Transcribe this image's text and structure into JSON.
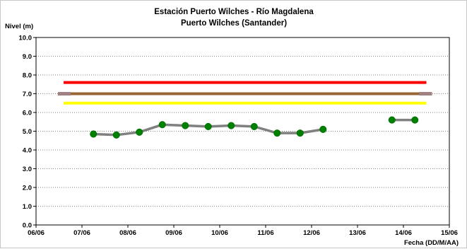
{
  "chart_data": {
    "type": "line",
    "title": "Estación Puerto Wilches - Río Magdalena",
    "subtitle": "Puerto Wilches (Santander)",
    "ylabel": "Nivel (m)",
    "xlabel": "Fecha (DD/M/AA)",
    "ylim": [
      0,
      10
    ],
    "yticks": [
      "0.0",
      "1.0",
      "2.0",
      "3.0",
      "4.0",
      "5.0",
      "6.0",
      "7.0",
      "8.0",
      "9.0",
      "10.0"
    ],
    "xlim": [
      0,
      9
    ],
    "xticks": [
      "06/06",
      "07/06",
      "08/06",
      "09/06",
      "10/06",
      "11/06",
      "12/06",
      "13/06",
      "14/06",
      "15/06"
    ],
    "grid": true,
    "thresholds": [
      {
        "value": 7.6,
        "color": "#ff0000",
        "x": [
          0.6,
          8.5
        ]
      },
      {
        "value": 7.0,
        "color": "#996633",
        "x": [
          0.6,
          8.5
        ]
      },
      {
        "value": 6.5,
        "color": "#ffff00",
        "x": [
          0.6,
          8.5
        ]
      }
    ],
    "series": [
      {
        "line_color": "#808080",
        "marker_color": "#008000",
        "segments": [
          {
            "x": [
              1.25,
              1.75,
              2.25,
              2.75,
              3.25,
              3.75,
              4.25,
              4.75,
              5.25,
              5.75,
              6.25
            ],
            "y": [
              4.85,
              4.8,
              4.95,
              5.35,
              5.3,
              5.25,
              5.3,
              5.25,
              4.9,
              4.9,
              5.1
            ]
          },
          {
            "x": [
              7.75,
              8.25
            ],
            "y": [
              5.6,
              5.6
            ]
          }
        ]
      }
    ]
  }
}
